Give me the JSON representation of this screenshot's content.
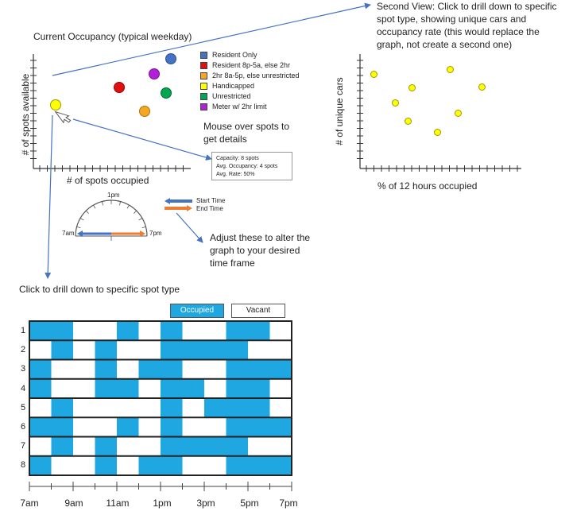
{
  "colors": {
    "occupied": "#1ea7e1",
    "vacant": "#ffffff",
    "arrow": "#4472c4",
    "start_arrow": "#4472c4",
    "end_arrow": "#ed7d31"
  },
  "main_chart": {
    "title": "Current Occupancy (typical weekday)",
    "xlabel": "# of spots occupied",
    "ylabel": "# of spots available",
    "legend": [
      {
        "label": "Resident Only",
        "color": "#4472c4"
      },
      {
        "label": "Resident 8p-5a, else 2hr",
        "color": "#e01010"
      },
      {
        "label": "2hr 8a-5p, else unrestricted",
        "color": "#f5a623"
      },
      {
        "label": "Handicapped",
        "color": "#ffff00"
      },
      {
        "label": "Unrestricted",
        "color": "#00a651"
      },
      {
        "label": "Meter w/ 2hr limit",
        "color": "#b21fd8"
      }
    ]
  },
  "hover_note": "Mouse over spots to get details",
  "tooltip": {
    "capacity": "Capacity: 8 spots",
    "avg_occupancy": "Avg. Occupancy: 4 spots",
    "avg_rate": "Avg. Rate: 50%"
  },
  "second_view_note": "Second View: Click to drill down to specific spot type, showing unique cars and occupancy rate (this would replace the graph, not create a second one)",
  "second_chart": {
    "xlabel": "% of 12 hours occupied",
    "ylabel": "# of unique cars"
  },
  "time_dial": {
    "top_label": "1pm",
    "left_label": "7am",
    "right_label": "7pm",
    "start_label": "Start Time",
    "end_label": "End Time"
  },
  "adjust_note": "Adjust these to alter the graph to your desired time frame",
  "drill_note": "Click to drill down to specific spot type",
  "grid": {
    "occupied_label": "Occupied",
    "vacant_label": "Vacant",
    "rows": [
      "1",
      "2",
      "3",
      "4",
      "5",
      "6",
      "7",
      "8"
    ],
    "x_labels": [
      "7am",
      "9am",
      "11am",
      "1pm",
      "3pm",
      "5pm",
      "7pm"
    ]
  }
}
